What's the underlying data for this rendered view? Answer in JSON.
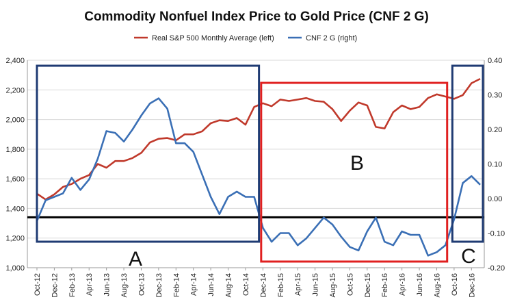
{
  "chart_data": {
    "type": "line",
    "title": "Commodity Nonfuel Index Price to Gold Price (CNF 2 G)",
    "x": [
      "Oct-12",
      "Nov-12",
      "Dec-12",
      "Jan-13",
      "Feb-13",
      "Mar-13",
      "Apr-13",
      "May-13",
      "Jun-13",
      "Jul-13",
      "Aug-13",
      "Sep-13",
      "Oct-13",
      "Nov-13",
      "Dec-13",
      "Jan-14",
      "Feb-14",
      "Mar-14",
      "Apr-14",
      "May-14",
      "Jun-14",
      "Jul-14",
      "Aug-14",
      "Sep-14",
      "Oct-14",
      "Nov-14",
      "Dec-14",
      "Jan-15",
      "Feb-15",
      "Mar-15",
      "Apr-15",
      "May-15",
      "Jun-15",
      "Jul-15",
      "Aug-15",
      "Sep-15",
      "Oct-15",
      "Nov-15",
      "Dec-15",
      "Jan-16",
      "Feb-16",
      "Mar-16",
      "Apr-16",
      "May-16",
      "Jun-16",
      "Jul-16",
      "Aug-16",
      "Sep-16",
      "Oct-16",
      "Nov-16",
      "Dec-16",
      "Jan-17"
    ],
    "x_tick_labels": [
      "Oct-12",
      "Dec-12",
      "Feb-13",
      "Apr-13",
      "Jun-13",
      "Aug-13",
      "Oct-13",
      "Dec-13",
      "Feb-14",
      "Apr-14",
      "Jun-14",
      "Aug-14",
      "Oct-14",
      "Dec-14",
      "Feb-15",
      "Apr-15",
      "Jun-15",
      "Aug-15",
      "Oct-15",
      "Dec-15",
      "Feb-16",
      "Apr-16",
      "Jun-16",
      "Aug-16",
      "Oct-16",
      "Dec-16"
    ],
    "left_axis": {
      "min": 1000,
      "max": 2400,
      "ticks": [
        "1,000",
        "1,200",
        "1,400",
        "1,600",
        "1,800",
        "2,000",
        "2,200",
        "2,400"
      ]
    },
    "right_axis": {
      "min": -0.2,
      "max": 0.4,
      "ticks": [
        "-0.20",
        "-0.10",
        "0.00",
        "0.10",
        "0.20",
        "0.30",
        "0.40"
      ]
    },
    "series": [
      {
        "name": "Real S&P 500 Monthly Average (left)",
        "axis": "left",
        "color": "#c0392b",
        "values": [
          1500,
          1460,
          1495,
          1545,
          1565,
          1600,
          1625,
          1700,
          1675,
          1720,
          1720,
          1740,
          1775,
          1845,
          1870,
          1875,
          1860,
          1900,
          1900,
          1920,
          1975,
          1995,
          1990,
          2010,
          1965,
          2085,
          2110,
          2090,
          2135,
          2125,
          2135,
          2145,
          2125,
          2120,
          2070,
          1990,
          2060,
          2115,
          2095,
          1950,
          1940,
          2050,
          2095,
          2070,
          2085,
          2145,
          2170,
          2155,
          2140,
          2165,
          2245,
          2275
        ]
      },
      {
        "name": "CNF 2 G (right)",
        "axis": "right",
        "color": "#3a6fb5",
        "values": [
          -0.065,
          -0.005,
          0.005,
          0.015,
          0.06,
          0.025,
          0.055,
          0.115,
          0.195,
          0.19,
          0.165,
          0.2,
          0.24,
          0.275,
          0.29,
          0.26,
          0.16,
          0.16,
          0.135,
          0.07,
          0.005,
          -0.045,
          0.005,
          0.02,
          0.005,
          0.005,
          -0.085,
          -0.125,
          -0.1,
          -0.1,
          -0.135,
          -0.115,
          -0.085,
          -0.055,
          -0.075,
          -0.11,
          -0.14,
          -0.15,
          -0.095,
          -0.055,
          -0.125,
          -0.135,
          -0.095,
          -0.105,
          -0.105,
          -0.165,
          -0.155,
          -0.135,
          -0.06,
          0.045,
          0.065,
          0.04
        ]
      }
    ],
    "reference_line": {
      "axis": "left",
      "value": 1340,
      "color": "#000000"
    },
    "regions": [
      {
        "label": "A",
        "from": "Oct-12",
        "to": "Nov-14",
        "color": "#1f3b73"
      },
      {
        "label": "B",
        "from": "Dec-14",
        "to": "Sep-16",
        "color": "#e02020"
      },
      {
        "label": "C",
        "from": "Oct-16",
        "to": "Jan-17",
        "color": "#1f3b73"
      }
    ],
    "grid": true,
    "legend_position": "top"
  }
}
